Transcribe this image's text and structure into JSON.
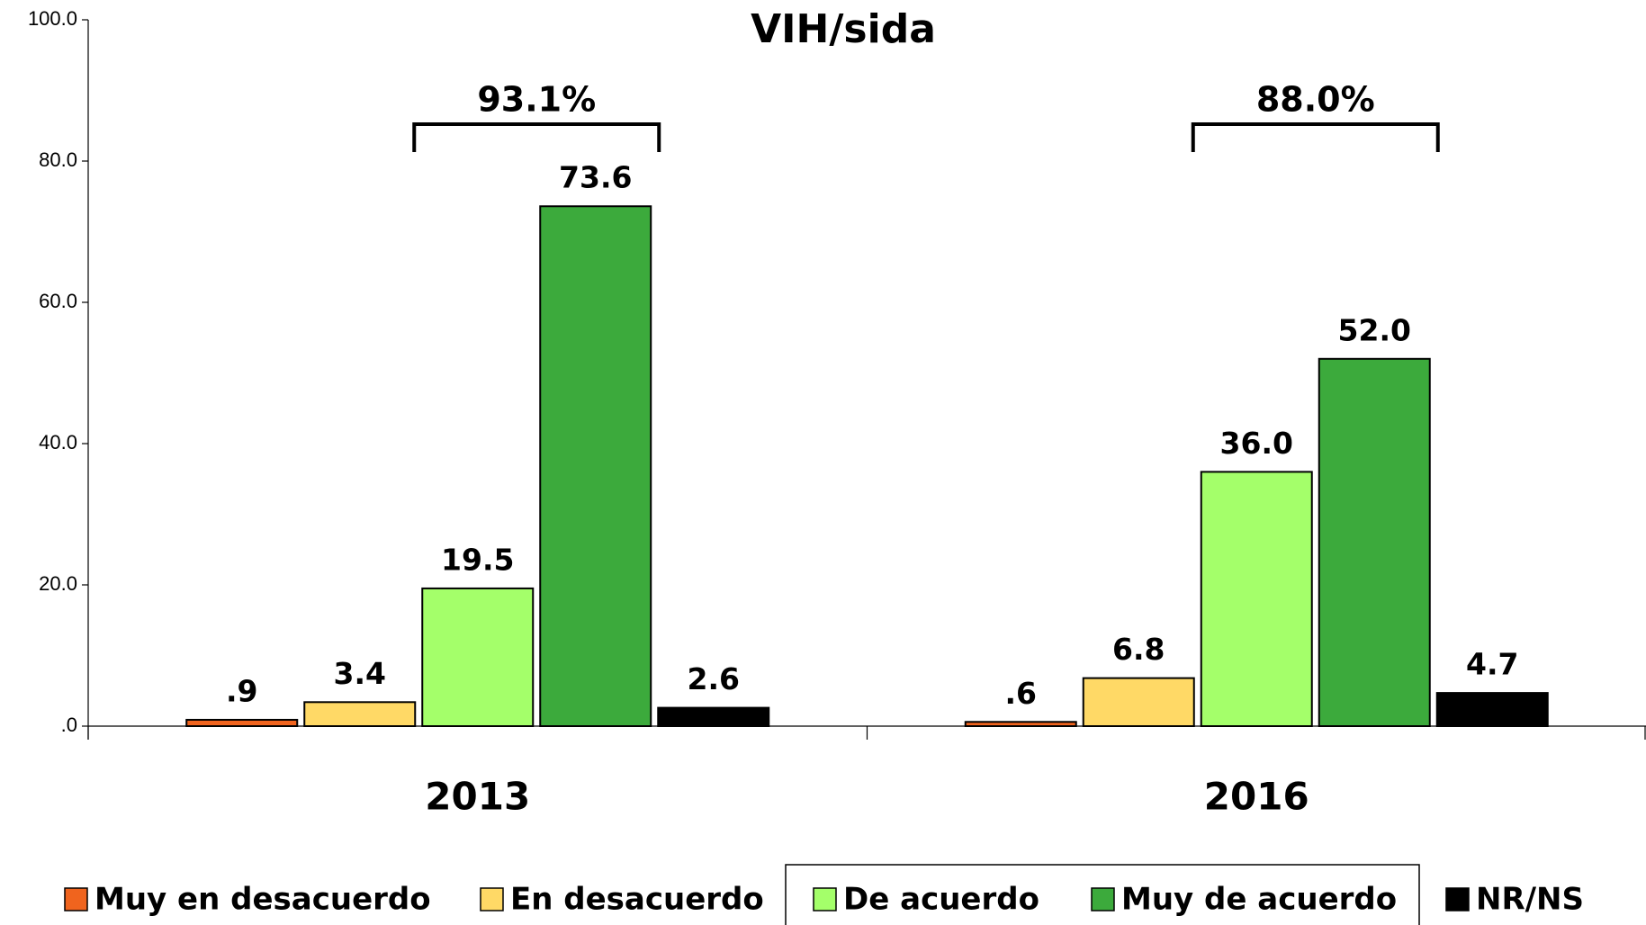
{
  "chart_data": {
    "type": "bar",
    "title": "VIH/sida",
    "categories": [
      "2013",
      "2016"
    ],
    "series": [
      {
        "name": "Muy en desacuerdo",
        "color": "#f0641e",
        "values": [
          0.9,
          0.6
        ],
        "value_labels": [
          ".9",
          ".6"
        ]
      },
      {
        "name": "En desacuerdo",
        "color": "#ffd966",
        "values": [
          3.4,
          6.8
        ],
        "value_labels": [
          "3.4",
          "6.8"
        ]
      },
      {
        "name": "De acuerdo",
        "color": "#a4ff6a",
        "values": [
          19.5,
          36.0
        ],
        "value_labels": [
          "19.5",
          "36.0"
        ]
      },
      {
        "name": "Muy de acuerdo",
        "color": "#3caa3c",
        "values": [
          73.6,
          52.0
        ],
        "value_labels": [
          "73.6",
          "52.0"
        ]
      },
      {
        "name": "NR/NS",
        "color": "#000000",
        "values": [
          2.6,
          4.7
        ],
        "value_labels": [
          "2.6",
          "4.7"
        ]
      }
    ],
    "annotations": [
      {
        "label": "93.1%"
      },
      {
        "label": "88.0%"
      }
    ],
    "ylim": [
      0,
      100
    ],
    "yticks": [
      {
        "value": 0,
        "label": ".0"
      },
      {
        "value": 20,
        "label": "20.0"
      },
      {
        "value": 40,
        "label": "40.0"
      },
      {
        "value": 60,
        "label": "60.0"
      },
      {
        "value": 80,
        "label": "80.0"
      },
      {
        "value": 100,
        "label": "100.0"
      }
    ],
    "grid": false,
    "legend": "bottom"
  }
}
